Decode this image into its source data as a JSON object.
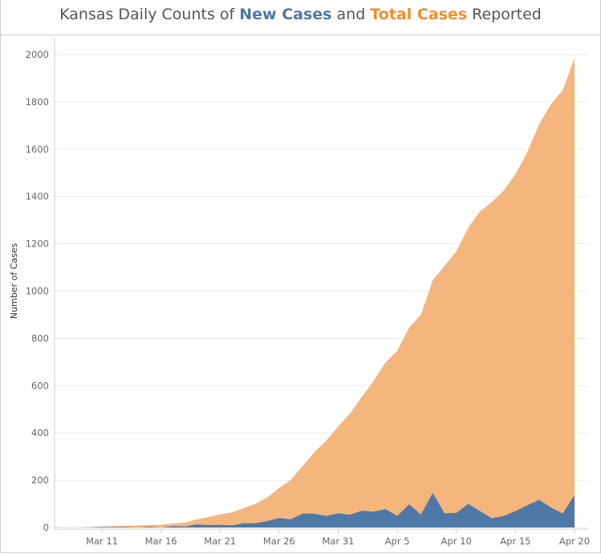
{
  "title": {
    "prefix": "Kansas Daily Counts of ",
    "new_label": "New Cases",
    "middle": " and ",
    "total_label": "Total Cases",
    "suffix": " Reported"
  },
  "chart_data": {
    "type": "area",
    "title": "Kansas Daily Counts of New Cases and Total Cases Reported",
    "ylabel": "Number of Cases",
    "xlabel": "",
    "ylim": [
      0,
      2050
    ],
    "grid": true,
    "yticks": [
      0,
      200,
      400,
      600,
      800,
      1000,
      1200,
      1400,
      1600,
      1800,
      2000
    ],
    "xticks": [
      {
        "label": "Mar 11",
        "day": 11
      },
      {
        "label": "Mar 16",
        "day": 16
      },
      {
        "label": "Mar 21",
        "day": 21
      },
      {
        "label": "Mar 26",
        "day": 26
      },
      {
        "label": "Mar 31",
        "day": 31
      },
      {
        "label": "Apr 5",
        "day": 36
      },
      {
        "label": "Apr 10",
        "day": 41
      },
      {
        "label": "Apr 15",
        "day": 46
      },
      {
        "label": "Apr 20",
        "day": 51
      }
    ],
    "x": [
      "Mar 7",
      "Mar 8",
      "Mar 9",
      "Mar 10",
      "Mar 11",
      "Mar 12",
      "Mar 13",
      "Mar 14",
      "Mar 15",
      "Mar 16",
      "Mar 17",
      "Mar 18",
      "Mar 19",
      "Mar 20",
      "Mar 21",
      "Mar 22",
      "Mar 23",
      "Mar 24",
      "Mar 25",
      "Mar 26",
      "Mar 27",
      "Mar 28",
      "Mar 29",
      "Mar 30",
      "Mar 31",
      "Apr 1",
      "Apr 2",
      "Apr 3",
      "Apr 4",
      "Apr 5",
      "Apr 6",
      "Apr 7",
      "Apr 8",
      "Apr 9",
      "Apr 10",
      "Apr 11",
      "Apr 12",
      "Apr 13",
      "Apr 14",
      "Apr 15",
      "Apr 16",
      "Apr 17",
      "Apr 18",
      "Apr 19",
      "Apr 20"
    ],
    "series": [
      {
        "name": "Total Cases",
        "color": "#f4b67d",
        "values": [
          1,
          1,
          1,
          2,
          4,
          6,
          8,
          8,
          11,
          11,
          17,
          21,
          34,
          44,
          55,
          64,
          82,
          100,
          127,
          167,
          202,
          261,
          319,
          368,
          428,
          482,
          553,
          620,
          698,
          747,
          845,
          900,
          1046,
          1106,
          1168,
          1268,
          1337,
          1376,
          1425,
          1494,
          1588,
          1705,
          1790,
          1849,
          1986
        ]
      },
      {
        "name": "New Cases",
        "color": "#4e79a7",
        "values": [
          1,
          0,
          0,
          1,
          2,
          2,
          2,
          0,
          3,
          0,
          6,
          4,
          13,
          10,
          11,
          9,
          18,
          18,
          27,
          40,
          35,
          59,
          58,
          49,
          60,
          54,
          71,
          67,
          78,
          49,
          98,
          55,
          146,
          60,
          62,
          100,
          69,
          39,
          49,
          69,
          94,
          117,
          85,
          59,
          137
        ]
      }
    ]
  }
}
